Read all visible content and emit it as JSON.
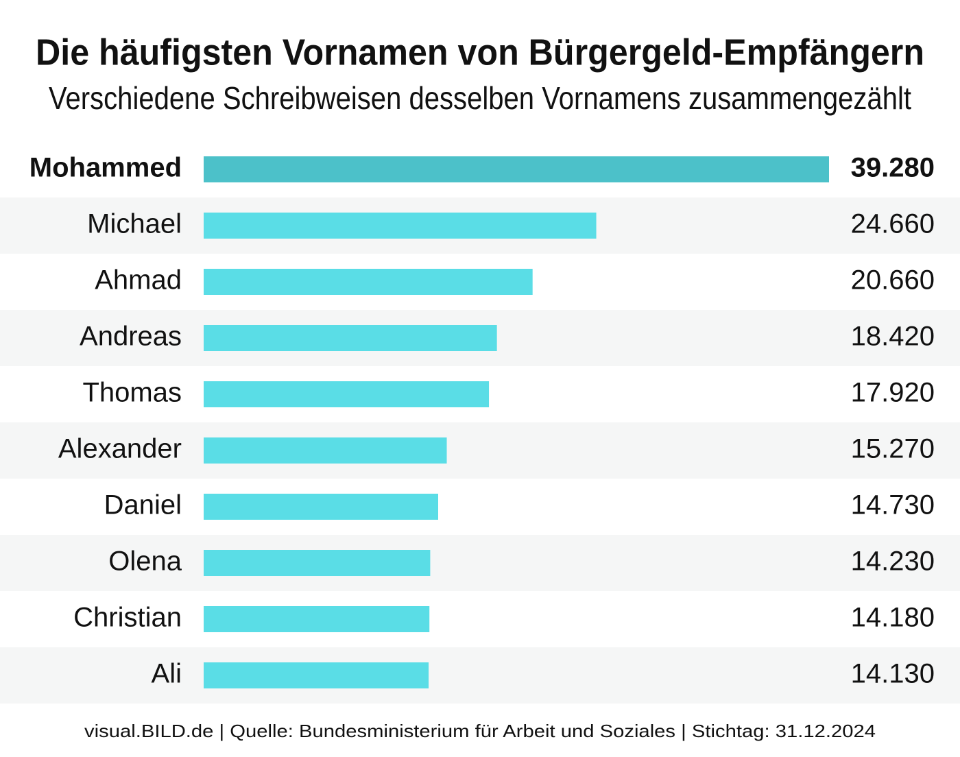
{
  "chart_data": {
    "type": "bar",
    "orientation": "horizontal",
    "title": "Die häufigsten Vornamen von Bürgergeld-Empfängern",
    "subtitle": "Verschiedene Schreibweisen desselben Vornamens zusammengezählt",
    "categories": [
      "Mohammed",
      "Michael",
      "Ahmad",
      "Andreas",
      "Thomas",
      "Alexander",
      "Daniel",
      "Olena",
      "Christian",
      "Ali"
    ],
    "values": [
      39280,
      24660,
      20660,
      18420,
      17920,
      15270,
      14730,
      14230,
      14180,
      14130
    ],
    "value_labels": [
      "39.280",
      "24.660",
      "20.660",
      "18.420",
      "17.920",
      "15.270",
      "14.730",
      "14.230",
      "14.180",
      "14.130"
    ],
    "colors": [
      "#4cc1c9",
      "#5adde6",
      "#5adde6",
      "#5adde6",
      "#5adde6",
      "#5adde6",
      "#5adde6",
      "#5adde6",
      "#5adde6",
      "#5adde6"
    ],
    "source": "visual.BILD.de | Quelle: Bundesministerium für Arbeit und Soziales | Stichtag: 31.12.2024"
  }
}
